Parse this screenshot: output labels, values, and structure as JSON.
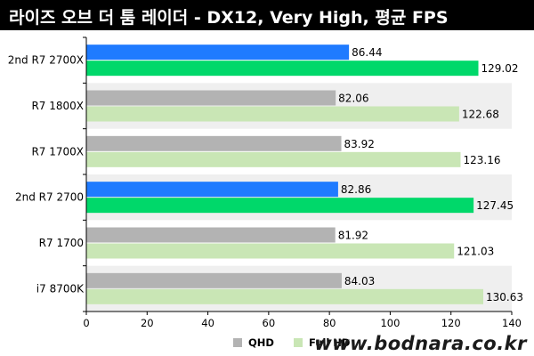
{
  "title": "라이즈 오브 더 툼 레이더 - DX12, Very High, 평균 FPS",
  "watermark": "www.bodnara.co.kr",
  "colors": {
    "qhd_highlight": "#1f7bff",
    "fullhd_highlight": "#00d86a",
    "qhd": "#b3b3b3",
    "fullhd": "#c9e6b5",
    "band": "#efefef"
  },
  "legend": [
    {
      "label": "QHD",
      "color": "#b3b3b3"
    },
    {
      "label": "Full HD",
      "color": "#c9e6b5"
    }
  ],
  "chart_data": {
    "type": "bar",
    "orientation": "horizontal",
    "title": "라이즈 오브 더 툼 레이더 - DX12, Very High, 평균 FPS",
    "categories": [
      "2nd R7 2700X",
      "R7 1800X",
      "R7 1700X",
      "2nd R7 2700",
      "R7 1700",
      "i7 8700K"
    ],
    "highlighted_categories": [
      "2nd R7 2700X",
      "2nd R7 2700"
    ],
    "series": [
      {
        "name": "QHD",
        "values": [
          86.44,
          82.06,
          83.92,
          82.86,
          81.92,
          84.03
        ]
      },
      {
        "name": "Full HD",
        "values": [
          129.02,
          122.68,
          123.16,
          127.45,
          121.03,
          130.63
        ]
      }
    ],
    "value_labels": {
      "QHD": [
        "86.44",
        "82.06",
        "83.92",
        "82.86",
        "81.92",
        "84.03"
      ],
      "Full HD": [
        "129.02",
        "122.68",
        "123.16",
        "127.45",
        "121.03",
        "130.63"
      ]
    },
    "xlim": [
      0,
      140
    ],
    "xticks": [
      0,
      20,
      40,
      60,
      80,
      100,
      120,
      140
    ],
    "grid": false,
    "legend_position": "bottom"
  }
}
